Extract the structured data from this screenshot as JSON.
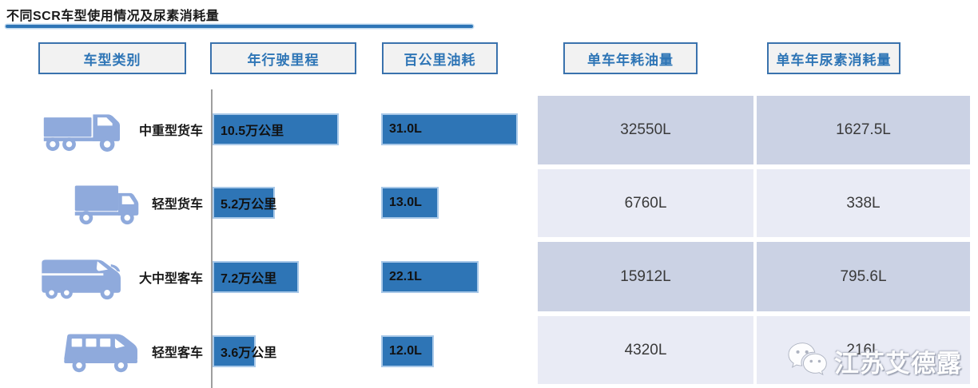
{
  "title": "不同SCR车型使用情况及尿素消耗量",
  "headers": {
    "category": "车型类别",
    "annual_mileage": "年行驶里程",
    "fuel_per_100km": "百公里油耗",
    "annual_fuel": "单车年耗油量",
    "annual_urea": "单车年尿素消耗量"
  },
  "rows": [
    {
      "category": "中重型货车",
      "icon": "heavy-truck-icon",
      "mileage_value": 10.5,
      "mileage_label": "10.5万公里",
      "fuel_value": 31.0,
      "fuel_label": "31.0L",
      "annual_fuel_label": "32550L",
      "annual_urea_label": "1627.5L"
    },
    {
      "category": "轻型货车",
      "icon": "light-truck-icon",
      "mileage_value": 5.2,
      "mileage_label": "5.2万公里",
      "fuel_value": 13.0,
      "fuel_label": "13.0L",
      "annual_fuel_label": "6760L",
      "annual_urea_label": "338L"
    },
    {
      "category": "大中型客车",
      "icon": "coach-bus-icon",
      "mileage_value": 7.2,
      "mileage_label": "7.2万公里",
      "fuel_value": 22.1,
      "fuel_label": "22.1L",
      "annual_fuel_label": "15912L",
      "annual_urea_label": "795.6L"
    },
    {
      "category": "轻型客车",
      "icon": "minibus-icon",
      "mileage_value": 3.6,
      "mileage_label": "3.6万公里",
      "fuel_value": 12.0,
      "fuel_label": "12.0L",
      "annual_fuel_label": "4320L",
      "annual_urea_label": "216L"
    }
  ],
  "chart_data": {
    "type": "bar",
    "title": "不同SCR车型使用情况及尿素消耗量",
    "categories": [
      "中重型货车",
      "轻型货车",
      "大中型客车",
      "轻型客车"
    ],
    "series": [
      {
        "name": "年行驶里程",
        "unit": "万公里",
        "values": [
          10.5,
          5.2,
          7.2,
          3.6
        ]
      },
      {
        "name": "百公里油耗",
        "unit": "L",
        "values": [
          31.0,
          13.0,
          22.1,
          12.0
        ]
      },
      {
        "name": "单车年耗油量",
        "unit": "L",
        "values": [
          32550,
          6760,
          15912,
          4320
        ]
      },
      {
        "name": "单车年尿素消耗量",
        "unit": "L",
        "values": [
          1627.5,
          338,
          795.6,
          216
        ]
      }
    ],
    "layout_hints": {
      "bar_orientation": "horizontal",
      "grid": false,
      "legend": "none",
      "value_columns_rendered_as_table": [
        "单车年耗油量",
        "单车年尿素消耗量"
      ]
    }
  },
  "watermark": {
    "icon": "wechat-icon",
    "text": "江苏艾德露"
  },
  "colors": {
    "bar_fill": "#2E75B6",
    "bar_border": "#A8C8E8",
    "header_text": "#2E75B6",
    "header_fill": "#F2F2F2",
    "table_row_dark": "#CBD2E4",
    "table_row_light": "#E9EBF5",
    "vehicle_icon": "#8FAADC",
    "title_underline": "#2E75B6"
  }
}
